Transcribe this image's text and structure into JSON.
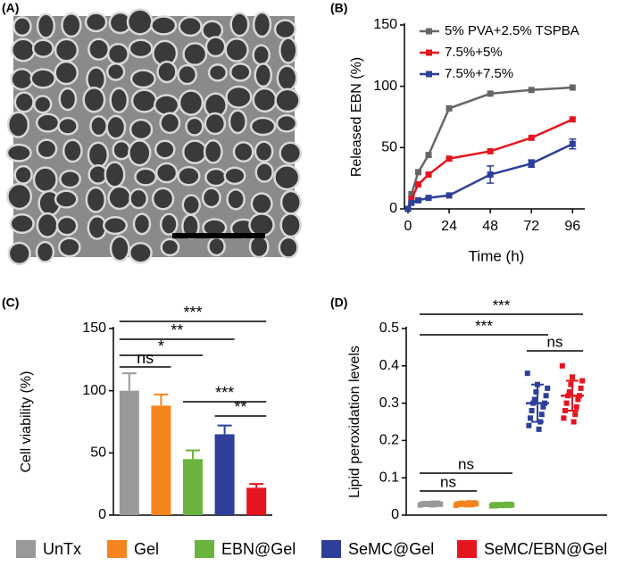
{
  "chart_data": [
    {
      "type": "image",
      "label": "(A)"
    },
    {
      "type": "line",
      "label": "(B)",
      "ylabel": "Released EBN (%)",
      "xlabel": "Time (h)",
      "x": [
        0,
        2,
        6,
        12,
        24,
        48,
        72,
        96
      ],
      "xlim": [
        0,
        100
      ],
      "xticks": [
        0,
        24,
        48,
        72,
        96
      ],
      "ylim": [
        0,
        150
      ],
      "yticks": [
        0,
        50,
        100,
        150
      ],
      "series": [
        {
          "name": "5% PVA+2.5% TSPBA",
          "color": "#666666",
          "values": [
            0,
            12,
            30,
            44,
            82,
            94,
            97,
            99
          ],
          "errors": [
            null,
            null,
            null,
            null,
            null,
            null,
            null,
            null
          ]
        },
        {
          "name": "7.5%+5%",
          "color": "#e4151f",
          "values": [
            0,
            8,
            20,
            28,
            41,
            47,
            58,
            73
          ],
          "errors": [
            null,
            null,
            null,
            null,
            null,
            null,
            null,
            null
          ]
        },
        {
          "name": "7.5%+7.5%",
          "color": "#2e3f99",
          "values": [
            0,
            5,
            7,
            9,
            11,
            28,
            37,
            53
          ],
          "errors": [
            null,
            null,
            null,
            null,
            null,
            7,
            3,
            4
          ]
        }
      ]
    },
    {
      "type": "bar",
      "label": "(C)",
      "ylabel": "Cell viability (%)",
      "categories": [
        "UnTx",
        "Gel",
        "EBN@Gel",
        "SeMC@Gel",
        "SeMC/EBN@Gel"
      ],
      "colors": [
        "#999999",
        "#f5841f",
        "#6ab43e",
        "#2e3f99",
        "#e4151f"
      ],
      "values": [
        100,
        88,
        45,
        65,
        22
      ],
      "errors": [
        14,
        9,
        7,
        7,
        3
      ],
      "ylim": [
        0,
        150
      ],
      "yticks": [
        0,
        50,
        100,
        150
      ],
      "annotations": [
        {
          "label": "ns",
          "from": 0,
          "to": 1
        },
        {
          "label": "*",
          "from": 0,
          "to": 2
        },
        {
          "label": "**",
          "from": 0,
          "to": 3
        },
        {
          "label": "***",
          "from": 0,
          "to": 4
        },
        {
          "label": "***",
          "from": 2,
          "to": 4
        },
        {
          "label": "**",
          "from": 3,
          "to": 4
        }
      ]
    },
    {
      "type": "scatter",
      "label": "(D)",
      "ylabel": "Lipid peroxidation levels",
      "ylim": [
        0,
        0.5
      ],
      "yticks": [
        0,
        0.1,
        0.2,
        0.3,
        0.4,
        0.5
      ],
      "groups": [
        {
          "color": "#999999",
          "mean": 0.03,
          "sd": 0.003,
          "values": [
            0.027,
            0.028,
            0.029,
            0.03,
            0.03,
            0.031,
            0.032,
            0.029,
            0.03,
            0.031,
            0.028,
            0.03,
            0.032,
            0.029,
            0.031
          ]
        },
        {
          "color": "#f5841f",
          "mean": 0.03,
          "sd": 0.003,
          "values": [
            0.026,
            0.028,
            0.03,
            0.031,
            0.033,
            0.029,
            0.03,
            0.032,
            0.028,
            0.031,
            0.03,
            0.029,
            0.033,
            0.03,
            0.028
          ]
        },
        {
          "color": "#6ab43e",
          "mean": 0.027,
          "sd": 0.003,
          "values": [
            0.025,
            0.026,
            0.027,
            0.028,
            0.029,
            0.027,
            0.026,
            0.028,
            0.027,
            0.025,
            0.029,
            0.027,
            0.026,
            0.028,
            0.027
          ]
        },
        {
          "color": "#2e3f99",
          "mean": 0.3,
          "sd": 0.05,
          "values": [
            0.38,
            0.35,
            0.34,
            0.33,
            0.32,
            0.31,
            0.3,
            0.3,
            0.29,
            0.28,
            0.27,
            0.26,
            0.25,
            0.24,
            0.23
          ]
        },
        {
          "color": "#e4151f",
          "mean": 0.32,
          "sd": 0.04,
          "values": [
            0.4,
            0.37,
            0.36,
            0.35,
            0.34,
            0.33,
            0.32,
            0.32,
            0.31,
            0.3,
            0.29,
            0.28,
            0.27,
            0.26,
            0.25
          ]
        }
      ],
      "annotations": [
        {
          "label": "ns",
          "from": 0,
          "to": 1
        },
        {
          "label": "ns",
          "from": 0,
          "to": 2
        },
        {
          "label": "***",
          "from": 0,
          "to": 3
        },
        {
          "label": "***",
          "from": 0,
          "to": 4
        },
        {
          "label": "ns",
          "from": 3,
          "to": 4
        }
      ]
    }
  ]
}
